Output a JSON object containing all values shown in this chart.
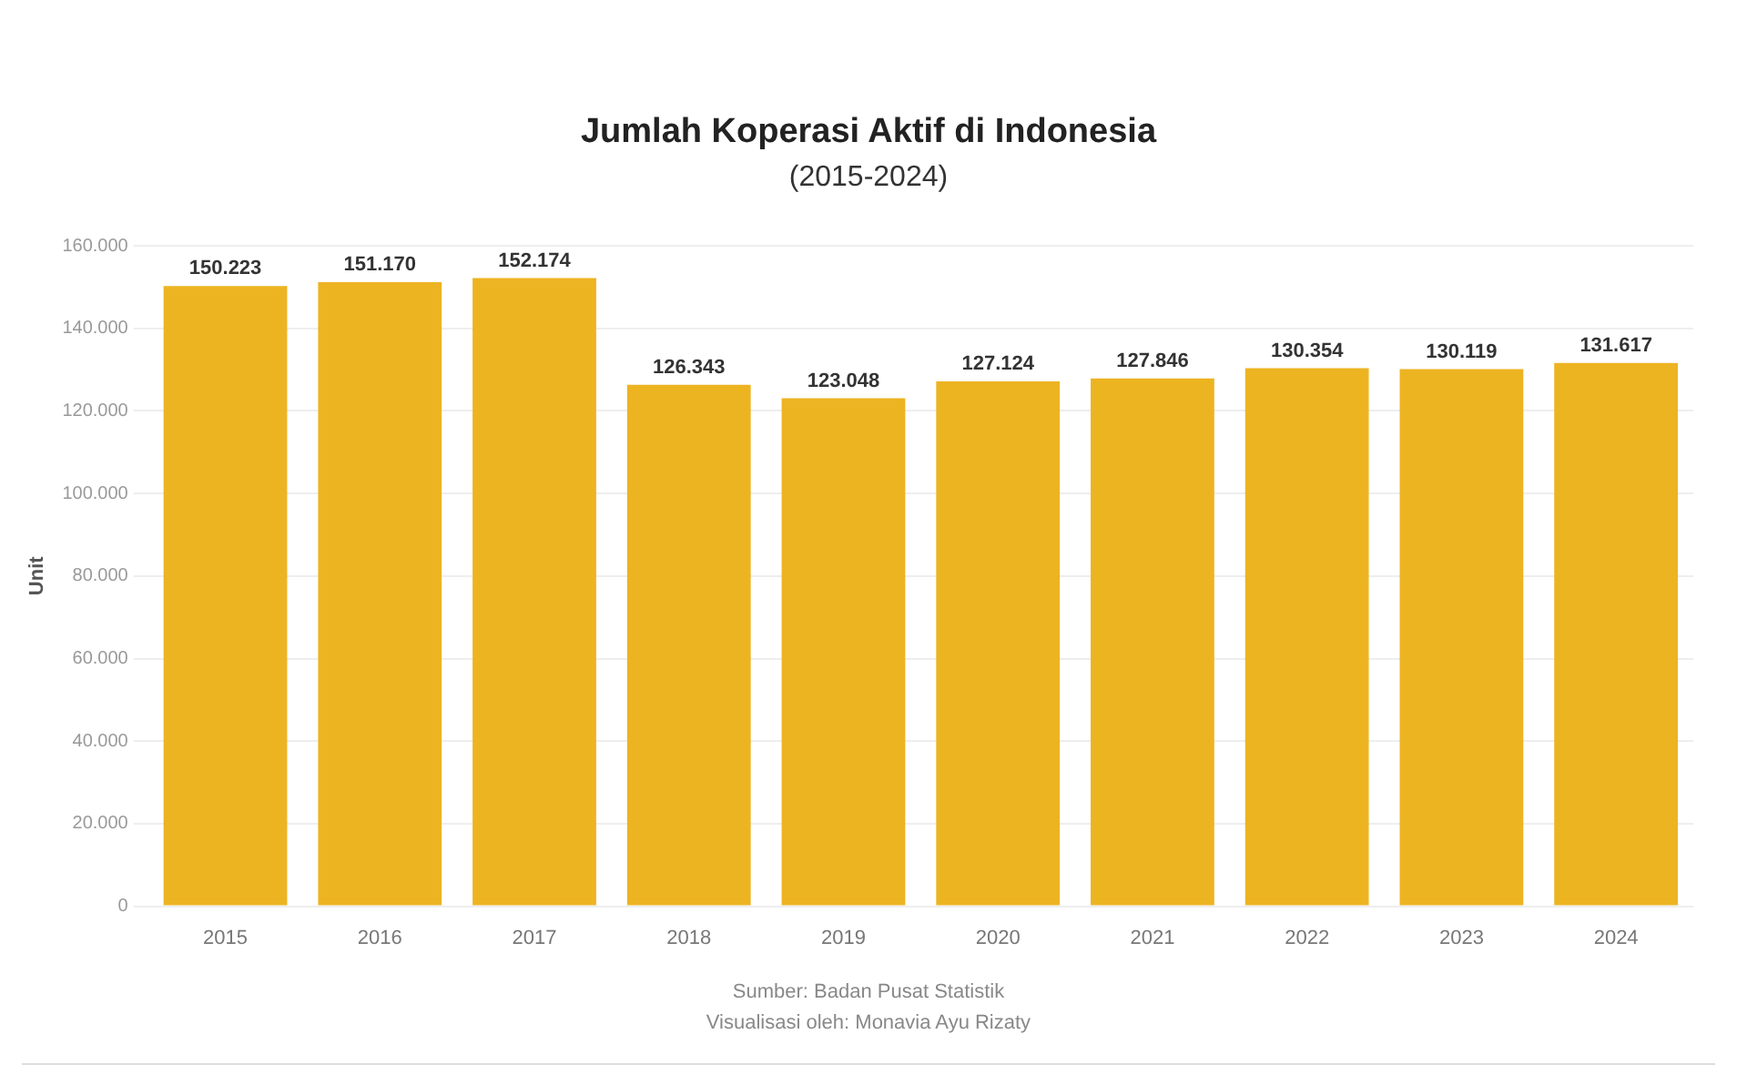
{
  "chart_data": {
    "type": "bar",
    "title": "Jumlah Koperasi Aktif di Indonesia",
    "subtitle": "(2015-2024)",
    "ylabel": "Unit",
    "categories": [
      "2015",
      "2016",
      "2017",
      "2018",
      "2019",
      "2020",
      "2021",
      "2022",
      "2023",
      "2024"
    ],
    "values": [
      150223,
      151170,
      152174,
      126343,
      123048,
      127124,
      127846,
      130354,
      130119,
      131617
    ],
    "value_labels": [
      "150.223",
      "151.170",
      "152.174",
      "126.343",
      "123.048",
      "127.124",
      "127.846",
      "130.354",
      "130.119",
      "131.617"
    ],
    "color": "#edb422",
    "ylim": [
      0,
      160000
    ],
    "yticks": [
      {
        "value": 0,
        "label": "0"
      },
      {
        "value": 20000,
        "label": "20.000"
      },
      {
        "value": 40000,
        "label": "40.000"
      },
      {
        "value": 60000,
        "label": "60.000"
      },
      {
        "value": 80000,
        "label": "80.000"
      },
      {
        "value": 100000,
        "label": "100.000"
      },
      {
        "value": 120000,
        "label": "120.000"
      },
      {
        "value": 140000,
        "label": "140.000"
      },
      {
        "value": 160000,
        "label": "160.000"
      }
    ],
    "grid": "y",
    "annotations": [
      "Sumber: Badan Pusat Statistik",
      "Visualisasi oleh: Monavia Ayu Rizaty"
    ]
  }
}
